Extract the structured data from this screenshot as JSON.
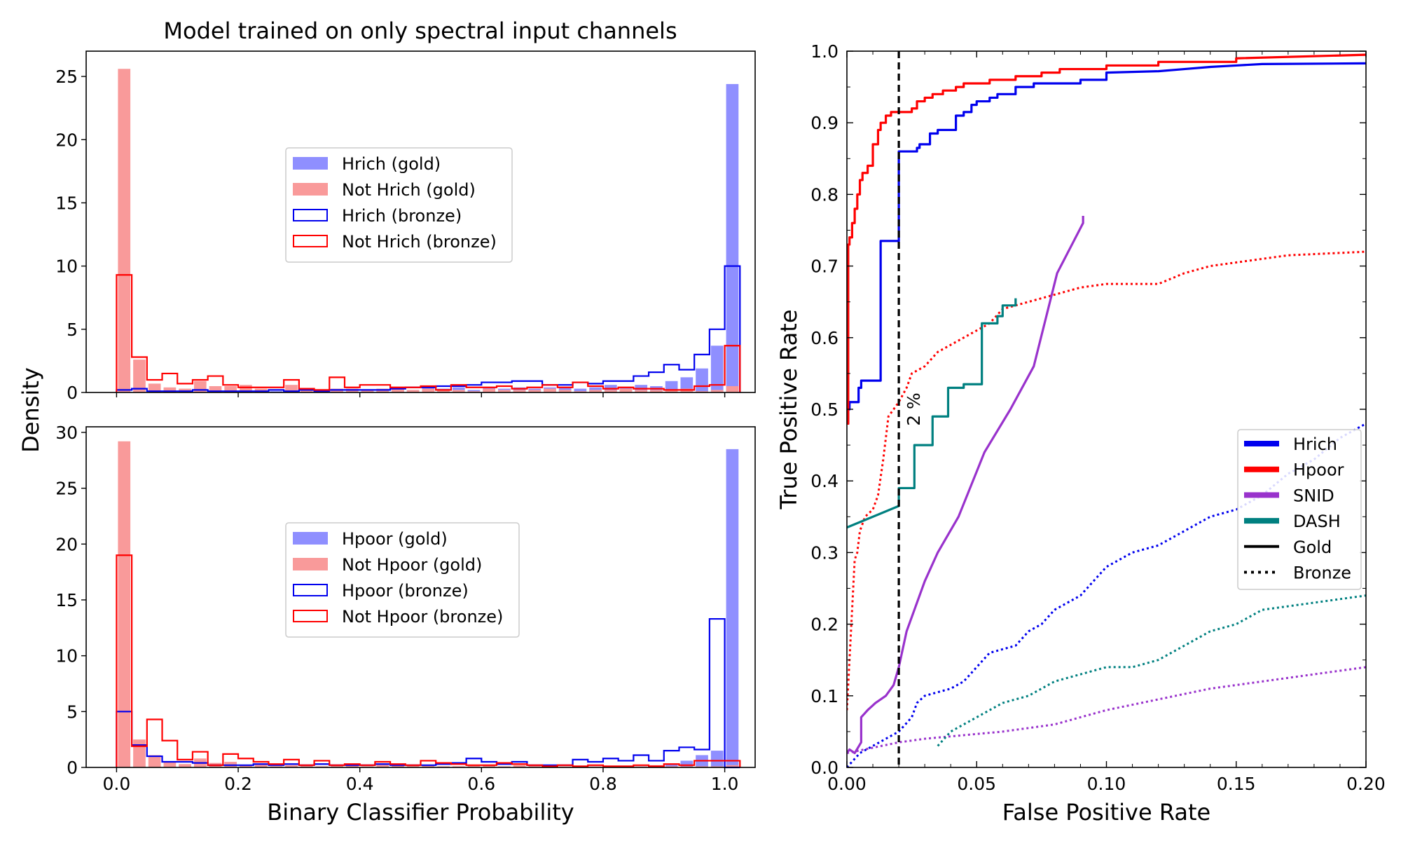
{
  "title": "Model trained on only spectral input channels",
  "chart_data": [
    {
      "id": "top_hist",
      "type": "bar",
      "xlabel": "Binary Classifier Probability",
      "ylabel": "Density",
      "xlim": [
        -0.05,
        1.05
      ],
      "ylim": [
        0,
        27
      ],
      "xticks": [
        "",
        "",
        "",
        "",
        "",
        ""
      ],
      "yticks": [
        "0",
        "5",
        "10",
        "15",
        "20",
        "25"
      ],
      "bin_edges_start": 0.0,
      "bin_width": 0.025,
      "legend_position": "center",
      "series": [
        {
          "name": "Hrich (gold)",
          "style": "filled",
          "color": "#8f8fff",
          "values": [
            0,
            0.1,
            0.1,
            0,
            0,
            0.1,
            0,
            0.1,
            0.1,
            0,
            0.1,
            0.2,
            0,
            0,
            0.2,
            0,
            0.1,
            0.2,
            0.2,
            0.2,
            0.4,
            0.3,
            0.4,
            0.2,
            0.4,
            0.3,
            0.4,
            0.3,
            0.4,
            0.4,
            0.3,
            0.4,
            0.6,
            0.4,
            0.6,
            0.5,
            0.9,
            1.2,
            1.9,
            3.7,
            24.4
          ]
        },
        {
          "name": "Not Hrich (gold)",
          "style": "filled",
          "color": "#f99a9a",
          "values": [
            25.6,
            2.6,
            0.7,
            0.4,
            0.3,
            0.9,
            0.5,
            0.5,
            0.6,
            0.3,
            0,
            0.6,
            0.2,
            0.2,
            0.3,
            0.3,
            0.2,
            0.3,
            0.4,
            0.2,
            0.3,
            0.2,
            0.2,
            0.1,
            0.3,
            0.2,
            0.2,
            0.2,
            0.3,
            0.2,
            0.1,
            0.2,
            0.2,
            0.3,
            0.2,
            0.2,
            0.2,
            0.3,
            0.1,
            0.2,
            0.5
          ]
        },
        {
          "name": "Hrich (bronze)",
          "style": "step",
          "color": "#0000ee",
          "values": [
            0.2,
            0.3,
            0.1,
            0.1,
            0.1,
            0.2,
            0.1,
            0.1,
            0.1,
            0.1,
            0.2,
            0.1,
            0.2,
            0.1,
            0.2,
            0.2,
            0.2,
            0.2,
            0.3,
            0.4,
            0.4,
            0.5,
            0.5,
            0.6,
            0.8,
            0.8,
            0.9,
            0.9,
            0.6,
            0.6,
            0.8,
            0.7,
            0.9,
            0.9,
            1.3,
            1.6,
            2.2,
            1.8,
            3.0,
            5.0,
            10.0
          ]
        },
        {
          "name": "Not Hrich (bronze)",
          "style": "step",
          "color": "#ff0000",
          "values": [
            9.3,
            2.8,
            1.0,
            1.5,
            0.7,
            1.0,
            1.3,
            0.6,
            0.4,
            0.4,
            0.4,
            1.0,
            0.3,
            0.2,
            1.2,
            0.4,
            0.6,
            0.6,
            0.4,
            0.4,
            0.5,
            0.2,
            0.6,
            0.4,
            0.4,
            0.5,
            0.3,
            0.4,
            0.6,
            0.4,
            0.8,
            0.5,
            0.3,
            0.4,
            0.3,
            0.3,
            0.2,
            0.2,
            0.5,
            0.6,
            3.7
          ]
        }
      ]
    },
    {
      "id": "bottom_hist",
      "type": "bar",
      "xlabel": "Binary Classifier Probability",
      "ylabel": "Density",
      "xlim": [
        -0.05,
        1.05
      ],
      "ylim": [
        0,
        30.5
      ],
      "xticks": [
        "0.0",
        "0.2",
        "0.4",
        "0.6",
        "0.8",
        "1.0"
      ],
      "yticks": [
        "0",
        "5",
        "10",
        "15",
        "20",
        "25",
        "30"
      ],
      "bin_edges_start": 0.0,
      "bin_width": 0.025,
      "legend_position": "center",
      "series": [
        {
          "name": "Hpoor (gold)",
          "style": "filled",
          "color": "#8f8fff",
          "values": [
            0,
            0.1,
            0,
            0.1,
            0.2,
            0,
            0.1,
            0,
            0,
            0,
            0,
            0,
            0,
            0,
            0.1,
            0,
            0,
            0,
            0,
            0,
            0,
            0,
            0,
            0,
            0,
            0,
            0,
            0,
            0.1,
            0,
            0,
            0,
            0,
            0,
            0.1,
            0.1,
            0.3,
            0.6,
            1.1,
            1.5,
            28.5
          ]
        },
        {
          "name": "Not Hpoor (gold)",
          "style": "filled",
          "color": "#f99a9a",
          "values": [
            29.2,
            2.5,
            1.1,
            0.5,
            0.3,
            0.8,
            0.4,
            0.5,
            0.2,
            0.3,
            0.1,
            0.2,
            0.2,
            0.1,
            0.2,
            0.2,
            0.1,
            0.3,
            0.2,
            0.2,
            0.2,
            0.1,
            0.1,
            0.2,
            0.2,
            0.1,
            0.2,
            0.2,
            0.1,
            0.1,
            0.1,
            0.1,
            0.1,
            0.1,
            0.1,
            0.2,
            0.1,
            0.1,
            0.1,
            0.1,
            0.2
          ]
        },
        {
          "name": "Hpoor (bronze)",
          "style": "step",
          "color": "#0000ee",
          "values": [
            5.0,
            2.0,
            1.0,
            0.5,
            0.5,
            0.4,
            0.2,
            0.2,
            0.2,
            0.3,
            0.2,
            0.3,
            0.2,
            0.3,
            0.2,
            0.2,
            0.2,
            0.3,
            0.2,
            0.2,
            0.2,
            0.3,
            0.4,
            0.8,
            0.5,
            0.3,
            0.5,
            0.2,
            0.2,
            0.2,
            0.7,
            0.5,
            0.8,
            0.6,
            1.1,
            0.6,
            1.5,
            1.8,
            1.6,
            13.3,
            0
          ]
        },
        {
          "name": "Not Hpoor (bronze)",
          "style": "step",
          "color": "#ff0000",
          "values": [
            19.0,
            1.9,
            4.3,
            2.4,
            0.7,
            1.4,
            0.2,
            1.2,
            0.8,
            0.5,
            0.3,
            0.7,
            0.2,
            0.6,
            0.2,
            0.3,
            0.2,
            0.5,
            0.3,
            0.2,
            0.6,
            0.4,
            0.3,
            0.2,
            0.2,
            0.4,
            0.3,
            0.2,
            0.1,
            0.2,
            0.1,
            0.2,
            0.1,
            0.1,
            0.2,
            0.1,
            0.3,
            0.2,
            0.6,
            0.6,
            0.6
          ]
        }
      ]
    },
    {
      "id": "roc",
      "type": "line",
      "xlabel": "False Positive Rate",
      "ylabel": "True Positive Rate",
      "xlim": [
        0,
        0.2
      ],
      "ylim": [
        0,
        1.0
      ],
      "xticks": [
        "0.00",
        "0.05",
        "0.10",
        "0.15",
        "0.20"
      ],
      "yticks": [
        "0.0",
        "0.1",
        "0.2",
        "0.3",
        "0.4",
        "0.5",
        "0.6",
        "0.7",
        "0.8",
        "0.9",
        "1.0"
      ],
      "legend_position": "center-right",
      "annotation": {
        "text": "2 %",
        "x": 0.02
      },
      "series": [
        {
          "name": "Hrich",
          "style": "solid",
          "color": "#0000ee",
          "x": [
            0,
            0.0005,
            0.0005,
            0.001,
            0.001,
            0.0035,
            0.0035,
            0.0045,
            0.0045,
            0.0055,
            0.0055,
            0.0065,
            0.0065,
            0.013,
            0.013,
            0.02,
            0.02,
            0.02,
            0.027,
            0.027,
            0.028,
            0.028,
            0.032,
            0.032,
            0.035,
            0.035,
            0.042,
            0.042,
            0.045,
            0.045,
            0.048,
            0.048,
            0.05,
            0.05,
            0.055,
            0.055,
            0.058,
            0.058,
            0.065,
            0.065,
            0.072,
            0.072,
            0.09,
            0.09,
            0.1,
            0.1,
            0.12,
            0.13,
            0.14,
            0.15,
            0.16,
            0.2
          ],
          "y": [
            0.48,
            0.48,
            0.5,
            0.5,
            0.51,
            0.51,
            0.51,
            0.51,
            0.53,
            0.53,
            0.54,
            0.54,
            0.54,
            0.54,
            0.735,
            0.735,
            0.735,
            0.86,
            0.86,
            0.865,
            0.865,
            0.87,
            0.87,
            0.885,
            0.885,
            0.89,
            0.89,
            0.91,
            0.91,
            0.915,
            0.915,
            0.925,
            0.925,
            0.93,
            0.93,
            0.935,
            0.935,
            0.94,
            0.94,
            0.95,
            0.95,
            0.955,
            0.955,
            0.96,
            0.96,
            0.97,
            0.972,
            0.975,
            0.978,
            0.98,
            0.982,
            0.983
          ]
        },
        {
          "name": "Hpoor",
          "style": "solid",
          "color": "#ff0000",
          "x": [
            0,
            0.0005,
            0.0005,
            0.001,
            0.001,
            0.002,
            0.002,
            0.003,
            0.003,
            0.004,
            0.004,
            0.005,
            0.005,
            0.006,
            0.006,
            0.008,
            0.008,
            0.01,
            0.01,
            0.012,
            0.012,
            0.013,
            0.013,
            0.015,
            0.015,
            0.017,
            0.017,
            0.02,
            0.02,
            0.025,
            0.025,
            0.027,
            0.027,
            0.03,
            0.03,
            0.033,
            0.033,
            0.037,
            0.037,
            0.042,
            0.042,
            0.045,
            0.045,
            0.055,
            0.055,
            0.065,
            0.065,
            0.075,
            0.075,
            0.082,
            0.082,
            0.1,
            0.1,
            0.12,
            0.12,
            0.15,
            0.15,
            0.2
          ],
          "y": [
            0.48,
            0.48,
            0.73,
            0.73,
            0.74,
            0.74,
            0.76,
            0.76,
            0.78,
            0.78,
            0.8,
            0.8,
            0.82,
            0.82,
            0.83,
            0.83,
            0.84,
            0.84,
            0.87,
            0.87,
            0.89,
            0.89,
            0.9,
            0.9,
            0.91,
            0.91,
            0.915,
            0.915,
            0.915,
            0.915,
            0.92,
            0.92,
            0.93,
            0.93,
            0.935,
            0.935,
            0.94,
            0.94,
            0.945,
            0.945,
            0.95,
            0.95,
            0.955,
            0.955,
            0.96,
            0.96,
            0.965,
            0.965,
            0.97,
            0.97,
            0.975,
            0.975,
            0.98,
            0.98,
            0.985,
            0.985,
            0.99,
            0.995
          ]
        },
        {
          "name": "SNID",
          "style": "solid",
          "color": "#9932cc",
          "x": [
            0,
            0.001,
            0.003,
            0.0055,
            0.0055,
            0.008,
            0.011,
            0.015,
            0.018,
            0.02,
            0.023,
            0.03,
            0.035,
            0.043,
            0.053,
            0.063,
            0.072,
            0.081,
            0.091,
            0.091
          ],
          "y": [
            0.02,
            0.025,
            0.02,
            0.035,
            0.07,
            0.08,
            0.09,
            0.1,
            0.115,
            0.14,
            0.19,
            0.26,
            0.3,
            0.35,
            0.44,
            0.5,
            0.56,
            0.69,
            0.76,
            0.77
          ]
        },
        {
          "name": "DASH",
          "style": "solid",
          "color": "#008080",
          "x": [
            0,
            0.02,
            0.02,
            0.026,
            0.026,
            0.033,
            0.033,
            0.039,
            0.039,
            0.045,
            0.045,
            0.047,
            0.047,
            0.052,
            0.052,
            0.058,
            0.058,
            0.06,
            0.06,
            0.065,
            0.065
          ],
          "y": [
            0.335,
            0.365,
            0.39,
            0.39,
            0.45,
            0.45,
            0.49,
            0.49,
            0.53,
            0.53,
            0.535,
            0.535,
            0.535,
            0.535,
            0.62,
            0.62,
            0.63,
            0.63,
            0.645,
            0.645,
            0.655
          ]
        },
        {
          "name": "Hrich (bronze)",
          "style": "dotted",
          "color": "#0000ee",
          "x": [
            0,
            0.005,
            0.01,
            0.015,
            0.02,
            0.025,
            0.027,
            0.03,
            0.04,
            0.045,
            0.05,
            0.055,
            0.065,
            0.07,
            0.075,
            0.08,
            0.09,
            0.095,
            0.1,
            0.105,
            0.11,
            0.12,
            0.13,
            0.14,
            0.15,
            0.16,
            0.17,
            0.18,
            0.19,
            0.2
          ],
          "y": [
            0.0,
            0.02,
            0.03,
            0.04,
            0.05,
            0.07,
            0.09,
            0.1,
            0.11,
            0.12,
            0.14,
            0.16,
            0.17,
            0.19,
            0.2,
            0.22,
            0.24,
            0.26,
            0.28,
            0.29,
            0.3,
            0.31,
            0.33,
            0.35,
            0.36,
            0.38,
            0.41,
            0.43,
            0.46,
            0.48
          ]
        },
        {
          "name": "Hpoor (bronze)",
          "style": "dotted",
          "color": "#ff0000",
          "x": [
            0,
            0.001,
            0.002,
            0.003,
            0.004,
            0.005,
            0.006,
            0.007,
            0.01,
            0.012,
            0.014,
            0.016,
            0.018,
            0.02,
            0.023,
            0.025,
            0.03,
            0.035,
            0.04,
            0.045,
            0.05,
            0.055,
            0.06,
            0.07,
            0.08,
            0.09,
            0.1,
            0.12,
            0.13,
            0.14,
            0.15,
            0.17,
            0.2
          ],
          "y": [
            0.08,
            0.15,
            0.22,
            0.29,
            0.3,
            0.33,
            0.34,
            0.35,
            0.36,
            0.38,
            0.43,
            0.49,
            0.5,
            0.51,
            0.53,
            0.55,
            0.56,
            0.58,
            0.59,
            0.6,
            0.61,
            0.62,
            0.64,
            0.65,
            0.66,
            0.67,
            0.675,
            0.675,
            0.69,
            0.7,
            0.705,
            0.715,
            0.72
          ]
        },
        {
          "name": "SNID (bronze)",
          "style": "dotted",
          "color": "#9932cc",
          "x": [
            0,
            0.02,
            0.03,
            0.045,
            0.06,
            0.08,
            0.1,
            0.12,
            0.14,
            0.16,
            0.18,
            0.2
          ],
          "y": [
            0.02,
            0.035,
            0.04,
            0.045,
            0.05,
            0.06,
            0.08,
            0.095,
            0.11,
            0.12,
            0.13,
            0.14
          ]
        },
        {
          "name": "DASH (bronze)",
          "style": "dotted",
          "color": "#008080",
          "x": [
            0.035,
            0.04,
            0.045,
            0.05,
            0.055,
            0.06,
            0.07,
            0.08,
            0.09,
            0.1,
            0.11,
            0.12,
            0.13,
            0.14,
            0.15,
            0.16,
            0.18,
            0.2
          ],
          "y": [
            0.03,
            0.05,
            0.06,
            0.07,
            0.08,
            0.09,
            0.1,
            0.12,
            0.13,
            0.14,
            0.14,
            0.15,
            0.17,
            0.19,
            0.2,
            0.22,
            0.23,
            0.24
          ]
        }
      ],
      "legend": [
        {
          "label": "Hrich",
          "color": "#0000ee",
          "style": "thick"
        },
        {
          "label": "Hpoor",
          "color": "#ff0000",
          "style": "thick"
        },
        {
          "label": "SNID",
          "color": "#9932cc",
          "style": "thick"
        },
        {
          "label": "DASH",
          "color": "#008080",
          "style": "thick"
        },
        {
          "label": "Gold",
          "color": "#000000",
          "style": "solid"
        },
        {
          "label": "Bronze",
          "color": "#000000",
          "style": "dotted"
        }
      ]
    }
  ]
}
